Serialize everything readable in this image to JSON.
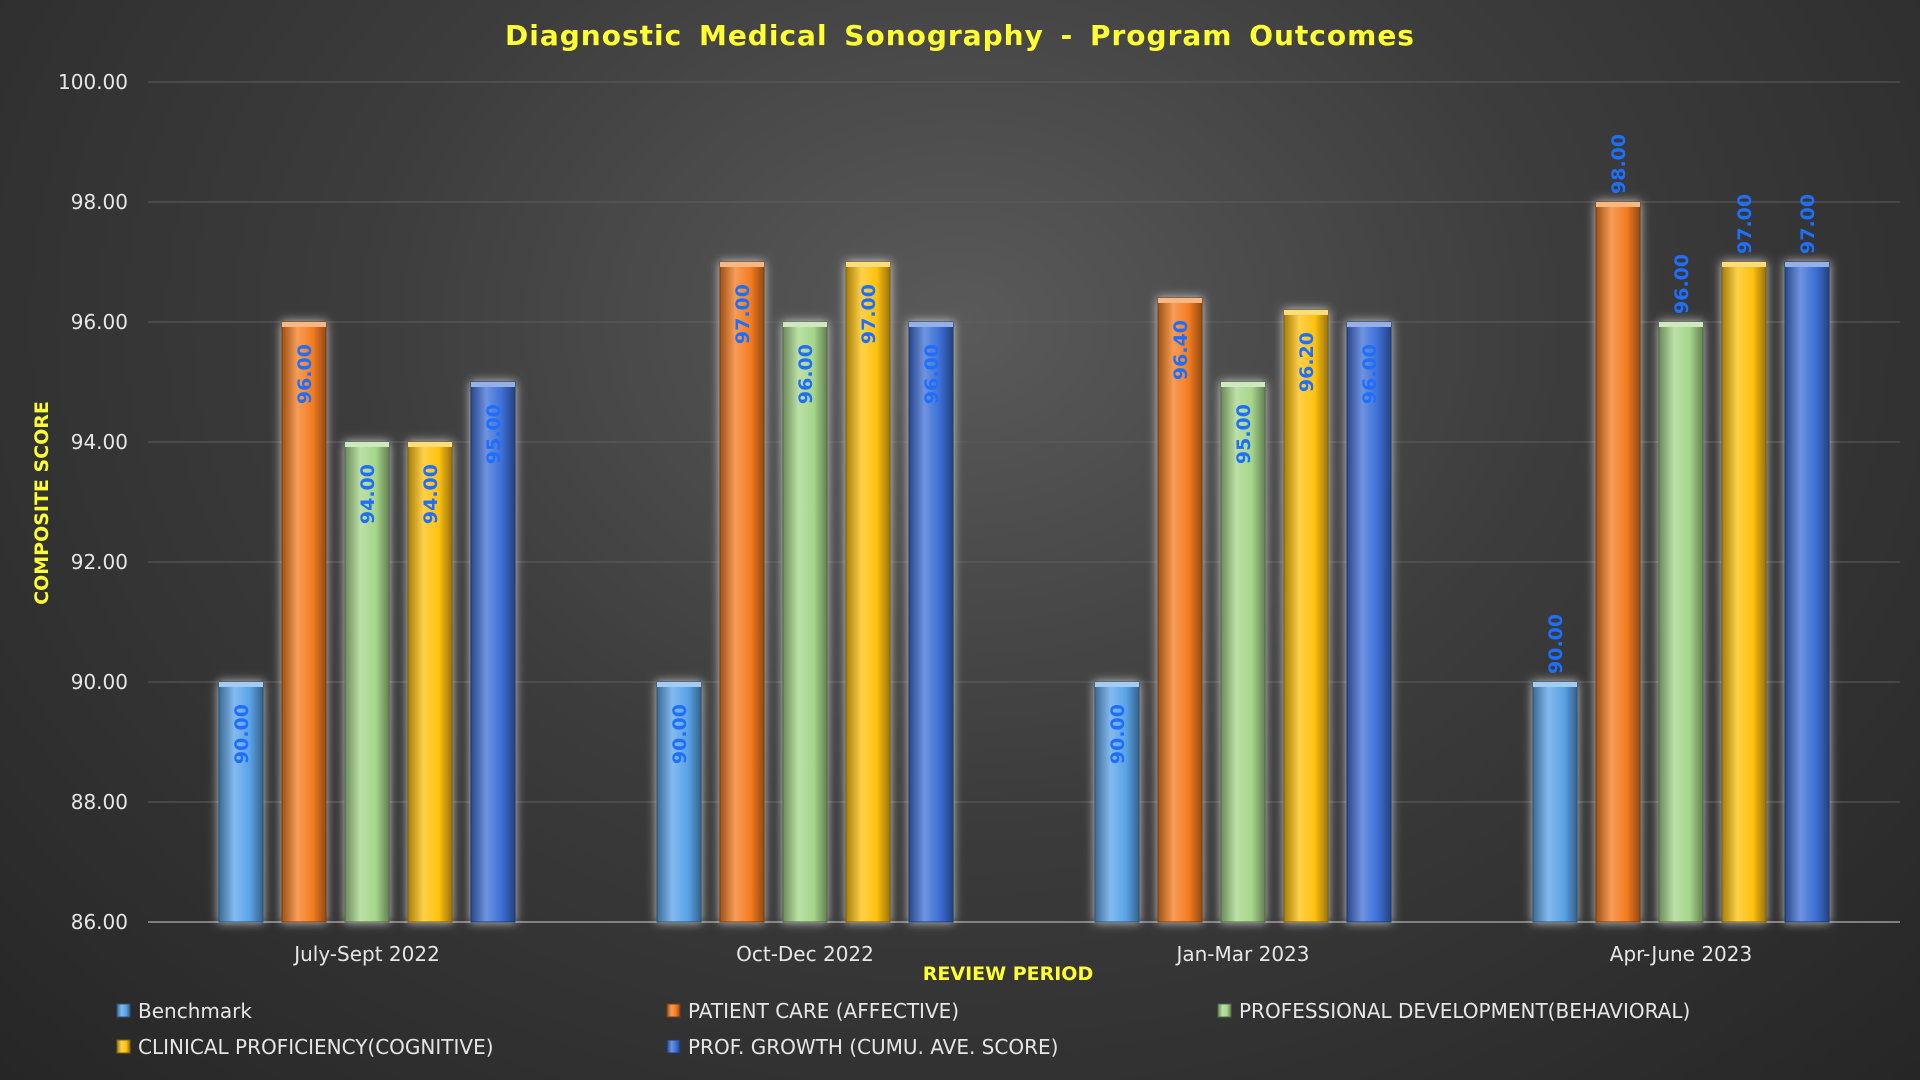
{
  "chart_data": {
    "type": "bar",
    "title": "Diagnostic Medical Sonography - Program Outcomes",
    "xlabel": "REVIEW PERIOD",
    "ylabel": "COMPOSITE SCORE",
    "ylim": [
      86,
      100
    ],
    "ytick_step": 2,
    "ytick_labels": [
      "86.00",
      "88.00",
      "90.00",
      "92.00",
      "94.00",
      "96.00",
      "98.00",
      "100.00"
    ],
    "grid": true,
    "legend_position": "bottom",
    "categories": [
      "July-Sept 2022",
      "Oct-Dec 2022",
      "Jan-Mar 2023",
      "Apr-June 2023"
    ],
    "series": [
      {
        "name": "Benchmark",
        "color": "#5aa3e8",
        "values": [
          90,
          90,
          90,
          90
        ],
        "labels": [
          "90.00",
          "90.00",
          "90.00",
          "90.00"
        ]
      },
      {
        "name": "PATIENT CARE (AFFECTIVE)",
        "color": "#f47c20",
        "values": [
          96,
          97,
          96.4,
          98
        ],
        "labels": [
          "96.00",
          "97.00",
          "96.40",
          "98.00"
        ]
      },
      {
        "name": "PROFESSIONAL DEVELOPMENT(BEHAVIORAL)",
        "color": "#a6d68a",
        "values": [
          94,
          96,
          95,
          96
        ],
        "labels": [
          "94.00",
          "96.00",
          "95.00",
          "96.00"
        ]
      },
      {
        "name": "CLINICAL PROFICIENCY(COGNITIVE)",
        "color": "#ffc20e",
        "values": [
          94,
          97,
          96.2,
          97
        ],
        "labels": [
          "94.00",
          "97.00",
          "96.20",
          "97.00"
        ]
      },
      {
        "name": "PROF. GROWTH (CUMU. AVE. SCORE)",
        "color": "#3d6fd6",
        "values": [
          95,
          96,
          96,
          97
        ],
        "labels": [
          "95.00",
          "96.00",
          "96.00",
          "97.00"
        ]
      }
    ]
  }
}
